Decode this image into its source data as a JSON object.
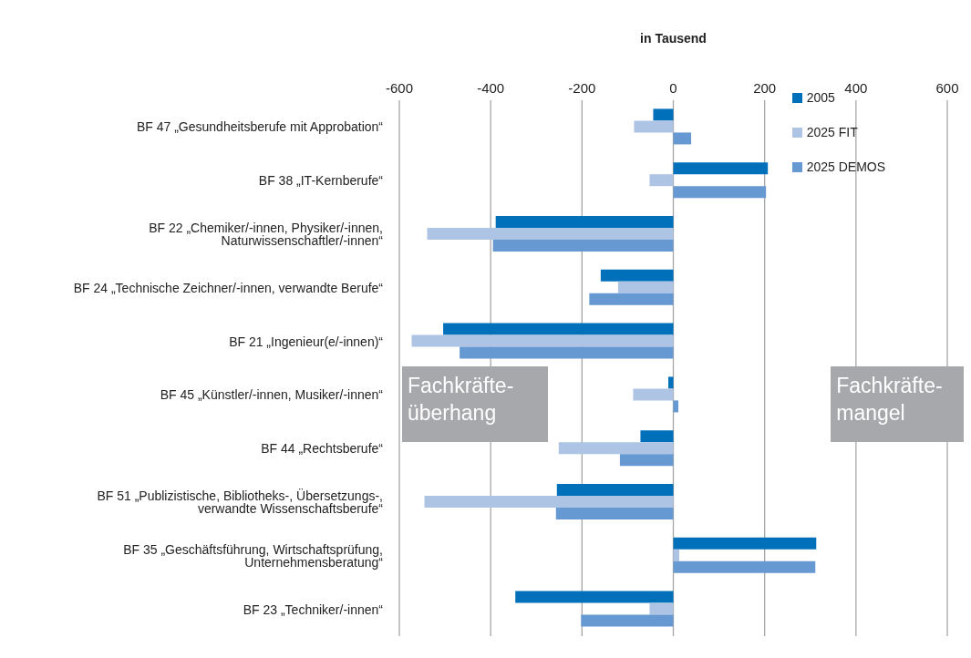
{
  "chart_data": {
    "type": "bar",
    "orientation": "horizontal",
    "xlabel": "in Tausend",
    "categories": [
      "BF 47 „Gesundheitsberufe mit Approbation“",
      "BF 38 „IT-Kernberufe“",
      "BF 22 „Chemiker/-innen, Physiker/-innen, Naturwissenschaftler/-innen“",
      "BF 24 „Technische Zeichner/-innen, verwandte Berufe“",
      "BF 21 „Ingenieur(e/-innen)“",
      "BF 45 „Künstler/-innen, Musiker/-innen“",
      "BF 44 „Rechtsberufe“",
      "BF 51 „Publizistische, Bibliotheks-, Übersetzungs-, verwandte Wissenschaftsberufe“",
      "BF 35 „Geschäftsführung, Wirtschaftsprüfung, Unternehmensberatung“",
      "BF 23 „Techniker/-innen“"
    ],
    "series": [
      {
        "name": "2005",
        "color": "#0070bb",
        "values": [
          -44,
          207,
          -389,
          -159,
          -504,
          -11,
          -72,
          -255,
          313,
          -346
        ]
      },
      {
        "name": "2025 FIT",
        "color": "#adc4e4",
        "values": [
          -86,
          -52,
          -539,
          -121,
          -573,
          -88,
          -251,
          -545,
          13,
          -52
        ]
      },
      {
        "name": "2025 DEMOS",
        "color": "#6699d1",
        "values": [
          39,
          203,
          -395,
          -184,
          -468,
          11,
          -117,
          -257,
          311,
          -202
        ]
      }
    ],
    "xlim": [
      -600,
      600
    ],
    "xticks": [
      -600,
      -400,
      -200,
      0,
      200,
      400,
      600
    ],
    "grid": "x",
    "legend": "top right",
    "annotations": [
      "Fachkräfte-\nüberhang",
      "Fachkräfte-\nmangel"
    ]
  }
}
